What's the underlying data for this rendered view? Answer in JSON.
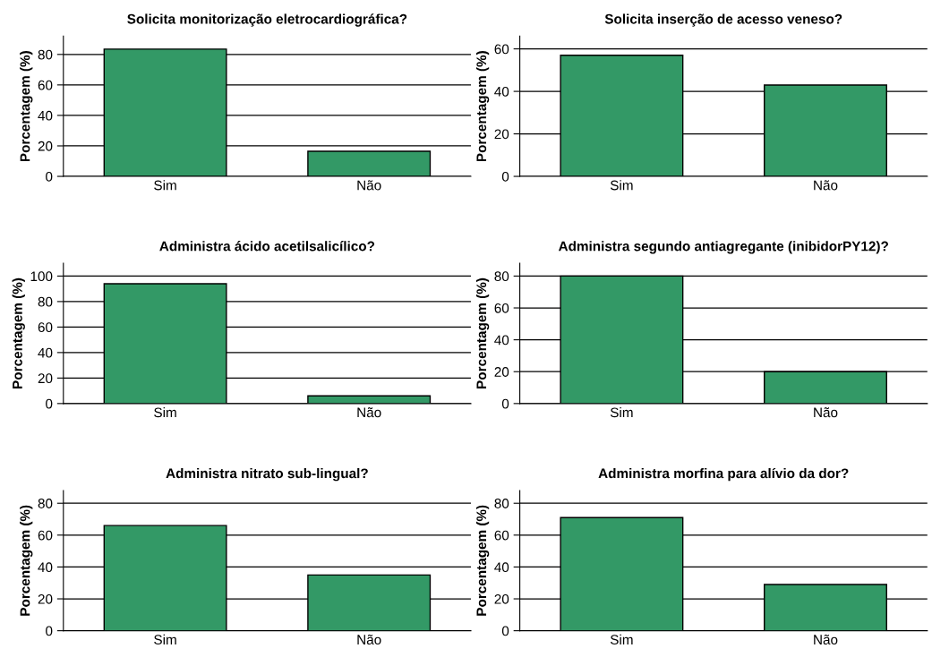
{
  "chart_data": [
    {
      "type": "bar",
      "title": "Solicita monitorização eletrocardiográfica?",
      "ylabel": "Porcentagem (%)",
      "categories": [
        "Sim",
        "Não"
      ],
      "values": [
        83.5,
        16.5
      ],
      "color": "#339966",
      "ylim": [
        0,
        92
      ],
      "yticks": [
        0,
        20,
        40,
        60,
        80
      ],
      "grid": "y"
    },
    {
      "type": "bar",
      "title": "Solicita inserção de acesso veneso?",
      "ylabel": "Porcentagem (%)",
      "categories": [
        "Sim",
        "Não"
      ],
      "values": [
        57,
        43
      ],
      "color": "#339966",
      "ylim": [
        0,
        66
      ],
      "yticks": [
        0,
        20,
        40,
        60
      ],
      "grid": "y"
    },
    {
      "type": "bar",
      "title": "Administra ácido acetilsalicílico?",
      "ylabel": "Porcentagem (%)",
      "categories": [
        "Sim",
        "Não"
      ],
      "values": [
        94,
        6
      ],
      "color": "#339966",
      "ylim": [
        0,
        110
      ],
      "yticks": [
        0,
        20,
        40,
        60,
        80,
        100
      ],
      "grid": "y"
    },
    {
      "type": "bar",
      "title": "Administra segundo antiagregante (inibidorPY12)?",
      "ylabel": "Porcentagem (%)",
      "categories": [
        "Sim",
        "Não"
      ],
      "values": [
        80,
        20
      ],
      "color": "#339966",
      "ylim": [
        0,
        88
      ],
      "yticks": [
        0,
        20,
        40,
        60,
        80
      ],
      "grid": "y"
    },
    {
      "type": "bar",
      "title": "Administra nitrato sub-lingual?",
      "ylabel": "Porcentagem (%)",
      "categories": [
        "Sim",
        "Não"
      ],
      "values": [
        66,
        35
      ],
      "color": "#339966",
      "ylim": [
        0,
        88
      ],
      "yticks": [
        0,
        20,
        40,
        60,
        80
      ],
      "grid": "y"
    },
    {
      "type": "bar",
      "title": "Administra morfina para alívio da dor?",
      "ylabel": "Porcentagem (%)",
      "categories": [
        "Sim",
        "Não"
      ],
      "values": [
        71,
        29
      ],
      "color": "#339966",
      "ylim": [
        0,
        88
      ],
      "yticks": [
        0,
        20,
        40,
        60,
        80
      ],
      "grid": "y"
    }
  ]
}
